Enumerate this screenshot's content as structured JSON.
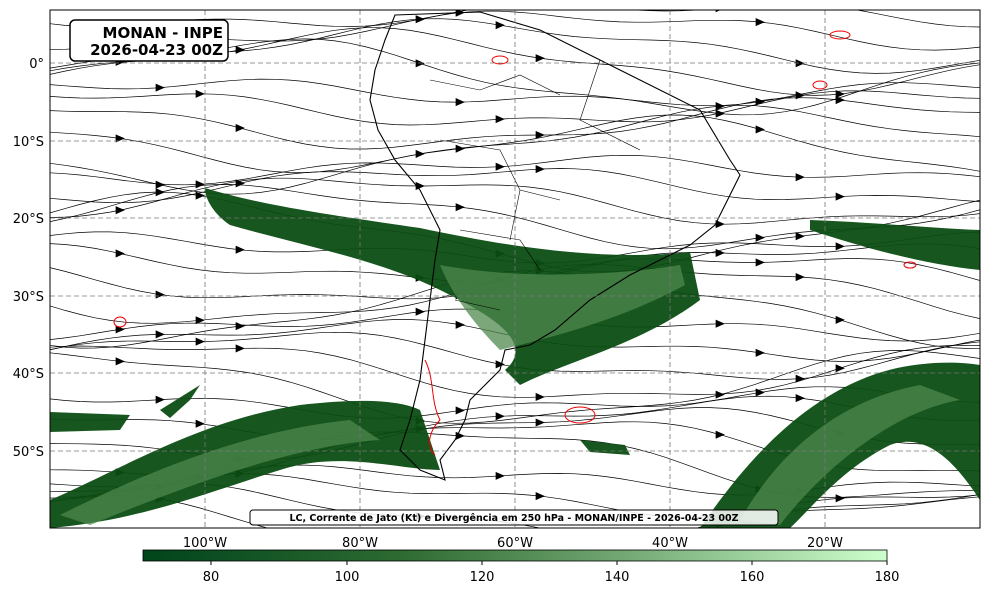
{
  "title": {
    "line1": "MONAN - INPE",
    "line2": "2026-04-23 00Z"
  },
  "caption": "LC, Corrente de Jato (Kt) e Divergência em 250 hPa - MONAN/INPE - 2026-04-23 00Z",
  "lat_labels": [
    "0°",
    "10°S",
    "20°S",
    "30°S",
    "40°S",
    "50°S"
  ],
  "lon_labels": [
    "100°W",
    "80°W",
    "60°W",
    "40°W",
    "20°W"
  ],
  "colorbar_ticks": [
    80,
    100,
    120,
    140,
    160,
    180
  ]
}
